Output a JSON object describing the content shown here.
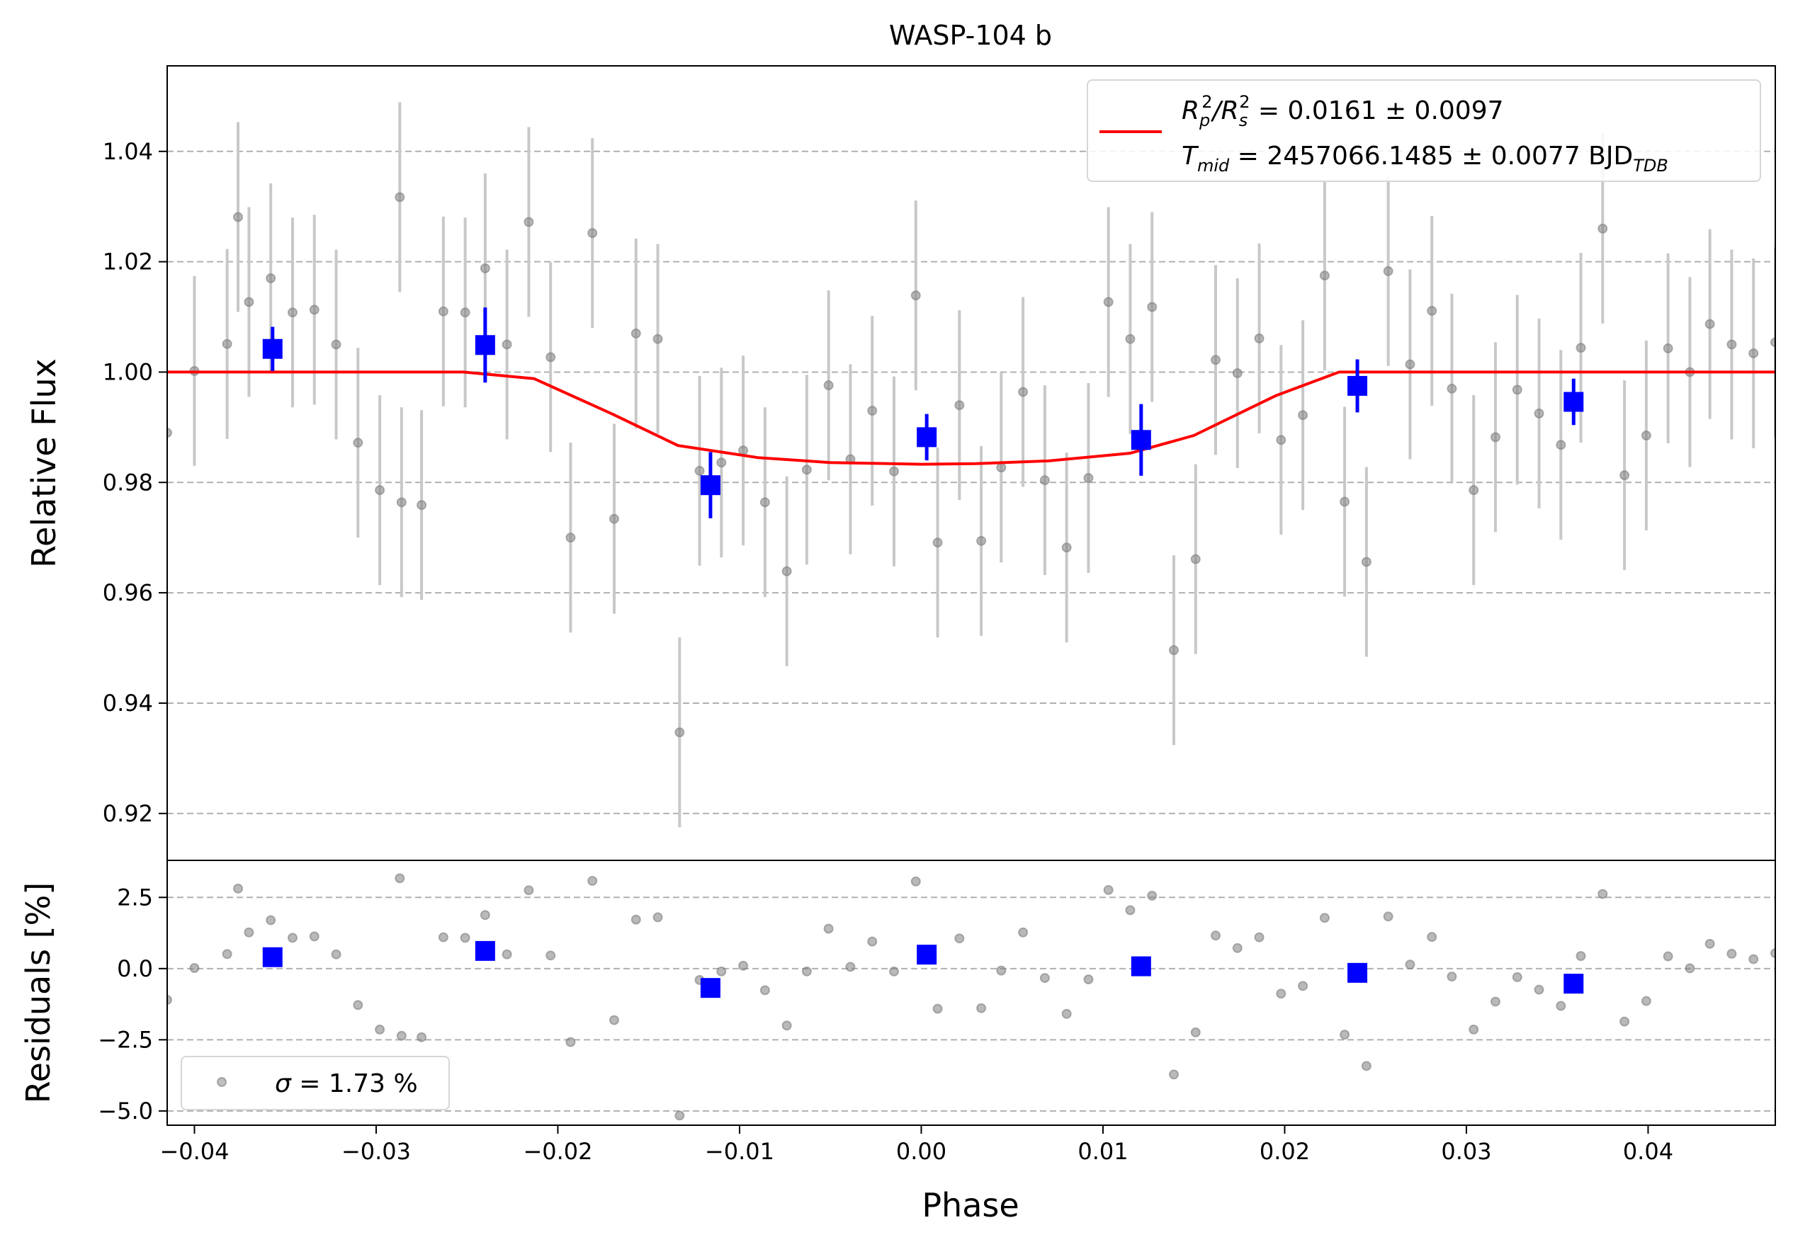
{
  "chart_data": {
    "type": "scatter",
    "title": "WASP-104 b",
    "xlabel": "Phase",
    "xlim": [
      -0.0415,
      0.047
    ],
    "x_ticks": [
      -0.04,
      -0.03,
      -0.02,
      -0.01,
      0.0,
      0.01,
      0.02,
      0.03,
      0.04
    ],
    "x_tick_labels": [
      "−0.04",
      "−0.03",
      "−0.02",
      "−0.01",
      "0.00",
      "0.01",
      "0.02",
      "0.03",
      "0.04"
    ],
    "colors": {
      "data": "#808080",
      "errorbar": "#c8c8c8",
      "binned": "#0000ff",
      "model": "#ff0000",
      "grid": "#b0b0b0"
    },
    "top_panel": {
      "ylabel": "Relative Flux",
      "ylim": [
        0.9115,
        1.0555
      ],
      "y_ticks": [
        0.92,
        0.94,
        0.96,
        0.98,
        1.0,
        1.02,
        1.04
      ],
      "y_tick_labels": [
        "0.92",
        "0.94",
        "0.96",
        "0.98",
        "1.00",
        "1.02",
        "1.04"
      ],
      "grid": "horizontal dashed",
      "legend": {
        "placement": "upper right",
        "line1_main": "R",
        "line1_sup": "2",
        "line1_sub": "p",
        "line1_slash": "/R",
        "line1_sup2": "2",
        "line1_sub2": "s",
        "line1_rest": " = 0.0161 ± 0.0097",
        "line2_main": "T",
        "line2_sub": "mid",
        "line2_rest": " = 2457066.1485 ± 0.0077 BJD",
        "line2_sub2": "TDB"
      },
      "data_points": [
        {
          "x": -0.0415,
          "y": 0.989
        },
        {
          "x": -0.04,
          "y": 1.0002,
          "err": 0.0172
        },
        {
          "x": -0.0382,
          "y": 1.0051,
          "err": 0.0172
        },
        {
          "x": -0.0376,
          "y": 1.0281,
          "err": 0.0172
        },
        {
          "x": -0.037,
          "y": 1.0127,
          "err": 0.0172
        },
        {
          "x": -0.0358,
          "y": 1.017,
          "err": 0.0172
        },
        {
          "x": -0.0346,
          "y": 1.0108,
          "err": 0.0172
        },
        {
          "x": -0.0334,
          "y": 1.0113,
          "err": 0.0172
        },
        {
          "x": -0.0322,
          "y": 1.005,
          "err": 0.0172
        },
        {
          "x": -0.031,
          "y": 0.9872,
          "err": 0.0172
        },
        {
          "x": -0.0298,
          "y": 0.9786,
          "err": 0.0172
        },
        {
          "x": -0.0287,
          "y": 1.0317,
          "err": 0.0172
        },
        {
          "x": -0.0286,
          "y": 0.9764,
          "err": 0.0172
        },
        {
          "x": -0.0275,
          "y": 0.9759,
          "err": 0.0172
        },
        {
          "x": -0.0263,
          "y": 1.011,
          "err": 0.0172
        },
        {
          "x": -0.0251,
          "y": 1.0108,
          "err": 0.0172
        },
        {
          "x": -0.024,
          "y": 1.0188,
          "err": 0.0172
        },
        {
          "x": -0.0228,
          "y": 1.005,
          "err": 0.0172
        },
        {
          "x": -0.0216,
          "y": 1.0272,
          "err": 0.0172
        },
        {
          "x": -0.0204,
          "y": 1.0027,
          "err": 0.0172
        },
        {
          "x": -0.0193,
          "y": 0.97,
          "err": 0.0172
        },
        {
          "x": -0.0181,
          "y": 1.0252,
          "err": 0.0172
        },
        {
          "x": -0.0169,
          "y": 0.9734,
          "err": 0.0172
        },
        {
          "x": -0.0157,
          "y": 1.007,
          "err": 0.0172
        },
        {
          "x": -0.0145,
          "y": 1.006,
          "err": 0.0172
        },
        {
          "x": -0.0133,
          "y": 0.9347,
          "err": 0.0172
        },
        {
          "x": -0.0122,
          "y": 0.9821,
          "err": 0.0172
        },
        {
          "x": -0.011,
          "y": 0.9836,
          "err": 0.0172
        },
        {
          "x": -0.0098,
          "y": 0.9858,
          "err": 0.0172
        },
        {
          "x": -0.0086,
          "y": 0.9764,
          "err": 0.0172
        },
        {
          "x": -0.0074,
          "y": 0.9639,
          "err": 0.0172
        },
        {
          "x": -0.0063,
          "y": 0.9823,
          "err": 0.0172
        },
        {
          "x": -0.0051,
          "y": 0.9976,
          "err": 0.0172
        },
        {
          "x": -0.0039,
          "y": 0.9842,
          "err": 0.0172
        },
        {
          "x": -0.0027,
          "y": 0.993,
          "err": 0.0172
        },
        {
          "x": -0.0015,
          "y": 0.982,
          "err": 0.0172
        },
        {
          "x": -0.0003,
          "y": 1.0139,
          "err": 0.0172
        },
        {
          "x": 0.0009,
          "y": 0.9691,
          "err": 0.0172
        },
        {
          "x": 0.0021,
          "y": 0.994,
          "err": 0.0172
        },
        {
          "x": 0.0033,
          "y": 0.9694,
          "err": 0.0172
        },
        {
          "x": 0.0044,
          "y": 0.9827,
          "err": 0.0172
        },
        {
          "x": 0.0056,
          "y": 0.9964,
          "err": 0.0172
        },
        {
          "x": 0.0068,
          "y": 0.9804,
          "err": 0.0172
        },
        {
          "x": 0.008,
          "y": 0.9682,
          "err": 0.0172
        },
        {
          "x": 0.0092,
          "y": 0.9808,
          "err": 0.0172
        },
        {
          "x": 0.0103,
          "y": 1.0127,
          "err": 0.0172
        },
        {
          "x": 0.0115,
          "y": 1.006,
          "err": 0.0172
        },
        {
          "x": 0.0127,
          "y": 1.0118,
          "err": 0.0172
        },
        {
          "x": 0.0139,
          "y": 0.9496,
          "err": 0.0172
        },
        {
          "x": 0.0151,
          "y": 0.9661,
          "err": 0.0172
        },
        {
          "x": 0.0162,
          "y": 1.0022,
          "err": 0.0172
        },
        {
          "x": 0.0174,
          "y": 0.9998,
          "err": 0.0172
        },
        {
          "x": 0.0186,
          "y": 1.0061,
          "err": 0.0172
        },
        {
          "x": 0.0198,
          "y": 0.9877,
          "err": 0.0172
        },
        {
          "x": 0.021,
          "y": 0.9922,
          "err": 0.0172
        },
        {
          "x": 0.0222,
          "y": 1.0175,
          "err": 0.0172
        },
        {
          "x": 0.0233,
          "y": 0.9765,
          "err": 0.0172
        },
        {
          "x": 0.0245,
          "y": 0.9656,
          "err": 0.0172
        },
        {
          "x": 0.0257,
          "y": 1.0183,
          "err": 0.0172
        },
        {
          "x": 0.0269,
          "y": 1.0014,
          "err": 0.0172
        },
        {
          "x": 0.0281,
          "y": 1.0111,
          "err": 0.0172
        },
        {
          "x": 0.0292,
          "y": 0.997,
          "err": 0.0172
        },
        {
          "x": 0.0304,
          "y": 0.9786,
          "err": 0.0172
        },
        {
          "x": 0.0316,
          "y": 0.9882,
          "err": 0.0172
        },
        {
          "x": 0.0328,
          "y": 0.9968,
          "err": 0.0172
        },
        {
          "x": 0.034,
          "y": 0.9925,
          "err": 0.0172
        },
        {
          "x": 0.0352,
          "y": 0.9868,
          "err": 0.0172
        },
        {
          "x": 0.0363,
          "y": 1.0044,
          "err": 0.0172
        },
        {
          "x": 0.0375,
          "y": 1.026,
          "err": 0.0172
        },
        {
          "x": 0.0387,
          "y": 0.9813,
          "err": 0.0172
        },
        {
          "x": 0.0399,
          "y": 0.9885,
          "err": 0.0172
        },
        {
          "x": 0.0411,
          "y": 1.0043,
          "err": 0.0172
        },
        {
          "x": 0.0423,
          "y": 1.0,
          "err": 0.0172
        },
        {
          "x": 0.0434,
          "y": 1.0087,
          "err": 0.0172
        },
        {
          "x": 0.0446,
          "y": 1.005,
          "err": 0.0172
        },
        {
          "x": 0.0458,
          "y": 1.0034,
          "err": 0.0172
        },
        {
          "x": 0.047,
          "y": 1.0054,
          "err": 0.0172
        }
      ],
      "binned_points": [
        {
          "x": -0.0357,
          "y": 1.0042,
          "err": 0.004
        },
        {
          "x": -0.024,
          "y": 1.0049,
          "err": 0.0068
        },
        {
          "x": -0.0116,
          "y": 0.9795,
          "err": 0.006
        },
        {
          "x": 0.0003,
          "y": 0.9882,
          "err": 0.0042
        },
        {
          "x": 0.0121,
          "y": 0.9877,
          "err": 0.0065
        },
        {
          "x": 0.024,
          "y": 0.9975,
          "err": 0.0048
        },
        {
          "x": 0.0359,
          "y": 0.9946,
          "err": 0.0042
        }
      ],
      "model": {
        "x": [
          -0.0415,
          -0.0252,
          -0.0213,
          -0.017,
          -0.0134,
          -0.009,
          -0.005,
          0.0,
          0.003,
          0.007,
          0.0115,
          0.015,
          0.0195,
          0.023,
          0.047
        ],
        "y": [
          1.0,
          1.0,
          0.9988,
          0.9924,
          0.9867,
          0.9845,
          0.9836,
          0.9833,
          0.9834,
          0.9839,
          0.9853,
          0.9885,
          0.9957,
          1.0,
          1.0
        ]
      }
    },
    "bottom_panel": {
      "ylabel": "Residuals [%]",
      "ylim": [
        -5.5,
        3.8
      ],
      "y_ticks": [
        -5.0,
        -2.5,
        0.0,
        2.5
      ],
      "y_tick_labels": [
        "−5.0",
        "−2.5",
        "0.0",
        "2.5"
      ],
      "grid": "horizontal dashed",
      "legend": {
        "placement": "lower left",
        "sigma_symbol": "σ",
        "sigma_text": " = 1.73 %"
      },
      "data_points": [
        {
          "x": -0.0415,
          "y": -1.1
        },
        {
          "x": -0.04,
          "y": 0.02
        },
        {
          "x": -0.0382,
          "y": 0.51
        },
        {
          "x": -0.0376,
          "y": 2.81
        },
        {
          "x": -0.037,
          "y": 1.27
        },
        {
          "x": -0.0358,
          "y": 1.7
        },
        {
          "x": -0.0346,
          "y": 1.08
        },
        {
          "x": -0.0334,
          "y": 1.13
        },
        {
          "x": -0.0322,
          "y": 0.5
        },
        {
          "x": -0.031,
          "y": -1.28
        },
        {
          "x": -0.0298,
          "y": -2.14
        },
        {
          "x": -0.0287,
          "y": 3.17
        },
        {
          "x": -0.0286,
          "y": -2.36
        },
        {
          "x": -0.0275,
          "y": -2.41
        },
        {
          "x": -0.0263,
          "y": 1.1
        },
        {
          "x": -0.0251,
          "y": 1.08
        },
        {
          "x": -0.024,
          "y": 1.88
        },
        {
          "x": -0.0228,
          "y": 0.5
        },
        {
          "x": -0.0216,
          "y": 2.75
        },
        {
          "x": -0.0204,
          "y": 0.46
        },
        {
          "x": -0.0193,
          "y": -2.58
        },
        {
          "x": -0.0181,
          "y": 3.08
        },
        {
          "x": -0.0169,
          "y": -1.81
        },
        {
          "x": -0.0157,
          "y": 1.72
        },
        {
          "x": -0.0145,
          "y": 1.8
        },
        {
          "x": -0.0133,
          "y": -5.16
        },
        {
          "x": -0.0122,
          "y": -0.4
        },
        {
          "x": -0.011,
          "y": -0.1
        },
        {
          "x": -0.0098,
          "y": 0.1
        },
        {
          "x": -0.0086,
          "y": -0.76
        },
        {
          "x": -0.0074,
          "y": -2.0
        },
        {
          "x": -0.0063,
          "y": -0.1
        },
        {
          "x": -0.0051,
          "y": 1.4
        },
        {
          "x": -0.0039,
          "y": 0.06
        },
        {
          "x": -0.0027,
          "y": 0.95
        },
        {
          "x": -0.0015,
          "y": -0.1
        },
        {
          "x": -0.0003,
          "y": 3.06
        },
        {
          "x": 0.0009,
          "y": -1.41
        },
        {
          "x": 0.0021,
          "y": 1.06
        },
        {
          "x": 0.0033,
          "y": -1.39
        },
        {
          "x": 0.0044,
          "y": -0.07
        },
        {
          "x": 0.0056,
          "y": 1.27
        },
        {
          "x": 0.0068,
          "y": -0.33
        },
        {
          "x": 0.008,
          "y": -1.59
        },
        {
          "x": 0.0092,
          "y": -0.38
        },
        {
          "x": 0.0103,
          "y": 2.76
        },
        {
          "x": 0.0115,
          "y": 2.05
        },
        {
          "x": 0.0127,
          "y": 2.56
        },
        {
          "x": 0.0139,
          "y": -3.72
        },
        {
          "x": 0.0151,
          "y": -2.24
        },
        {
          "x": 0.0162,
          "y": 1.16
        },
        {
          "x": 0.0174,
          "y": 0.72
        },
        {
          "x": 0.0186,
          "y": 1.1
        },
        {
          "x": 0.0198,
          "y": -0.88
        },
        {
          "x": 0.021,
          "y": -0.61
        },
        {
          "x": 0.0222,
          "y": 1.78
        },
        {
          "x": 0.0233,
          "y": -2.32
        },
        {
          "x": 0.0245,
          "y": -3.42
        },
        {
          "x": 0.0257,
          "y": 1.83
        },
        {
          "x": 0.0269,
          "y": 0.14
        },
        {
          "x": 0.0281,
          "y": 1.11
        },
        {
          "x": 0.0292,
          "y": -0.28
        },
        {
          "x": 0.0304,
          "y": -2.14
        },
        {
          "x": 0.0316,
          "y": -1.16
        },
        {
          "x": 0.0328,
          "y": -0.3
        },
        {
          "x": 0.034,
          "y": -0.74
        },
        {
          "x": 0.0352,
          "y": -1.31
        },
        {
          "x": 0.0363,
          "y": 0.44
        },
        {
          "x": 0.0375,
          "y": 2.62
        },
        {
          "x": 0.0387,
          "y": -1.86
        },
        {
          "x": 0.0399,
          "y": -1.14
        },
        {
          "x": 0.0411,
          "y": 0.43
        },
        {
          "x": 0.0423,
          "y": 0.01
        },
        {
          "x": 0.0434,
          "y": 0.87
        },
        {
          "x": 0.0446,
          "y": 0.52
        },
        {
          "x": 0.0458,
          "y": 0.33
        },
        {
          "x": 0.047,
          "y": 0.54
        }
      ],
      "binned_points": [
        {
          "x": -0.0357,
          "y": 0.4
        },
        {
          "x": -0.024,
          "y": 0.62
        },
        {
          "x": -0.0116,
          "y": -0.68
        },
        {
          "x": 0.0003,
          "y": 0.49
        },
        {
          "x": 0.0121,
          "y": 0.08
        },
        {
          "x": 0.024,
          "y": -0.15
        },
        {
          "x": 0.0359,
          "y": -0.53
        }
      ]
    }
  }
}
